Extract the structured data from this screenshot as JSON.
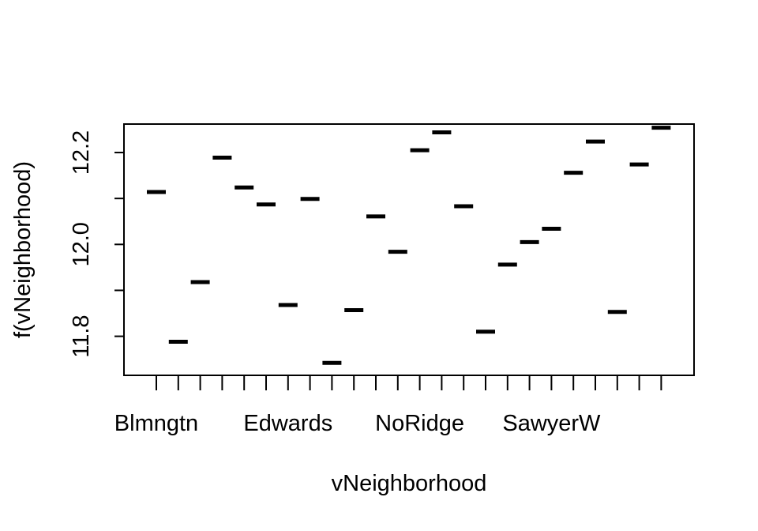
{
  "chart_data": {
    "type": "scatter",
    "marker": "horizontal-dash",
    "xlabel": "vNeighborhood",
    "ylabel": "f(vNeighborhood)",
    "ylim": [
      11.715,
      12.262
    ],
    "yticks": [
      11.8,
      11.9,
      12.0,
      12.1,
      12.2
    ],
    "ytick_labels": [
      "11.8",
      "",
      "12.0",
      "",
      "12.2"
    ],
    "category_count": 24,
    "visible_category_labels": [
      {
        "index": 0,
        "label": "Blmngtn"
      },
      {
        "index": 6,
        "label": "Edwards"
      },
      {
        "index": 12,
        "label": "NoRidge"
      },
      {
        "index": 18,
        "label": "SawyerW"
      }
    ],
    "values": [
      12.114,
      11.788,
      11.918,
      12.189,
      12.124,
      12.087,
      11.868,
      12.099,
      11.742,
      11.857,
      12.061,
      11.984,
      12.205,
      12.244,
      12.083,
      11.81,
      11.956,
      12.005,
      12.034,
      12.156,
      12.224,
      11.853,
      12.174,
      12.254
    ],
    "grid": false,
    "legend": "none"
  }
}
